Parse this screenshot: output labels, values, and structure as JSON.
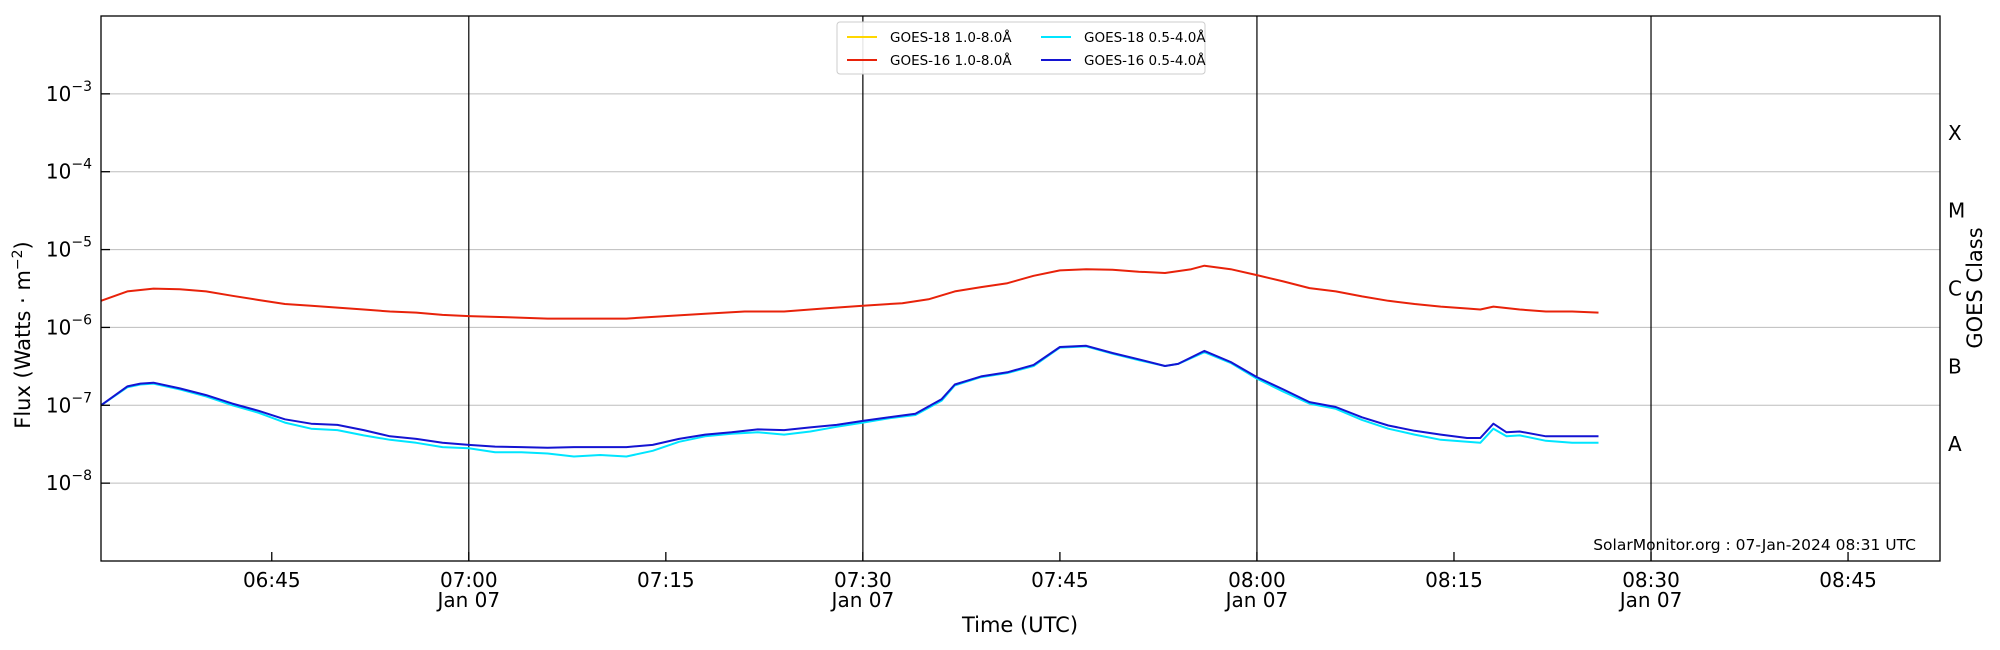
{
  "chart_data": {
    "type": "line",
    "xlabel": "Time (UTC)",
    "ylabel": "Flux (Watts · m",
    "ylabel_sup": "−2",
    "ylabel_close": ")",
    "y2label": "GOES Class",
    "yscale": "log",
    "xlim": [
      "06:32",
      "08:52"
    ],
    "ylim": [
      1e-09,
      0.01
    ],
    "grid": "horizontal",
    "legend_position": "top-center",
    "credit": "SolarMonitor.org : 07-Jan-2024 08:31 UTC",
    "y_ticks": [
      {
        "base": "10",
        "exp": "−3",
        "value": 0.001
      },
      {
        "base": "10",
        "exp": "−4",
        "value": 0.0001
      },
      {
        "base": "10",
        "exp": "−5",
        "value": 1e-05
      },
      {
        "base": "10",
        "exp": "−6",
        "value": 1e-06
      },
      {
        "base": "10",
        "exp": "−7",
        "value": 1e-07
      },
      {
        "base": "10",
        "exp": "−8",
        "value": 1e-08
      }
    ],
    "x_ticks": [
      {
        "time": "06:45",
        "label": "06:45",
        "sub": ""
      },
      {
        "time": "07:00",
        "label": "07:00",
        "sub": "Jan 07"
      },
      {
        "time": "07:15",
        "label": "07:15",
        "sub": ""
      },
      {
        "time": "07:30",
        "label": "07:30",
        "sub": "Jan 07"
      },
      {
        "time": "07:45",
        "label": "07:45",
        "sub": ""
      },
      {
        "time": "08:00",
        "label": "08:00",
        "sub": "Jan 07"
      },
      {
        "time": "08:15",
        "label": "08:15",
        "sub": ""
      },
      {
        "time": "08:30",
        "label": "08:30",
        "sub": "Jan 07"
      },
      {
        "time": "08:45",
        "label": "08:45",
        "sub": ""
      }
    ],
    "vlines": [
      "07:00",
      "07:30",
      "08:00",
      "08:30"
    ],
    "goes_classes": [
      {
        "label": "A",
        "value": 3.16e-08
      },
      {
        "label": "B",
        "value": 3.16e-07
      },
      {
        "label": "C",
        "value": 3.16e-06
      },
      {
        "label": "M",
        "value": 3.16e-05
      },
      {
        "label": "X",
        "value": 0.000316
      }
    ],
    "series": [
      {
        "name": "GOES-18 1.0-8.0Å",
        "color": "#ffd700",
        "times": [],
        "values": []
      },
      {
        "name": "GOES-16 1.0-8.0Å",
        "color": "#e8220a",
        "times": [
          "06:32",
          "06:34",
          "06:36",
          "06:38",
          "06:40",
          "06:42",
          "06:44",
          "06:46",
          "06:48",
          "06:50",
          "06:52",
          "06:54",
          "06:56",
          "06:58",
          "07:00",
          "07:03",
          "07:06",
          "07:09",
          "07:12",
          "07:15",
          "07:18",
          "07:21",
          "07:24",
          "07:27",
          "07:30",
          "07:33",
          "07:35",
          "07:37",
          "07:39",
          "07:41",
          "07:43",
          "07:45",
          "07:47",
          "07:49",
          "07:51",
          "07:53",
          "07:55",
          "07:56",
          "07:58",
          "08:00",
          "08:02",
          "08:04",
          "08:06",
          "08:08",
          "08:10",
          "08:12",
          "08:14",
          "08:16",
          "08:17",
          "08:18",
          "08:20",
          "08:22",
          "08:24",
          "08:26"
        ],
        "values": [
          2.2e-06,
          2.9e-06,
          3.15e-06,
          3.1e-06,
          2.9e-06,
          2.55e-06,
          2.25e-06,
          2e-06,
          1.9e-06,
          1.8e-06,
          1.7e-06,
          1.6e-06,
          1.55e-06,
          1.45e-06,
          1.4e-06,
          1.35e-06,
          1.3e-06,
          1.3e-06,
          1.3e-06,
          1.4e-06,
          1.5e-06,
          1.6e-06,
          1.6e-06,
          1.75e-06,
          1.9e-06,
          2.05e-06,
          2.3e-06,
          2.9e-06,
          3.3e-06,
          3.7e-06,
          4.6e-06,
          5.4e-06,
          5.6e-06,
          5.5e-06,
          5.2e-06,
          5e-06,
          5.6e-06,
          6.2e-06,
          5.6e-06,
          4.7e-06,
          3.9e-06,
          3.2e-06,
          2.9e-06,
          2.5e-06,
          2.2e-06,
          2e-06,
          1.85e-06,
          1.75e-06,
          1.7e-06,
          1.85e-06,
          1.7e-06,
          1.6e-06,
          1.6e-06,
          1.55e-06
        ]
      },
      {
        "name": "GOES-18 0.5-4.0Å",
        "color": "#00e5ff",
        "times": [
          "06:32",
          "06:34",
          "06:35",
          "06:36",
          "06:38",
          "06:40",
          "06:42",
          "06:44",
          "06:46",
          "06:48",
          "06:50",
          "06:52",
          "06:54",
          "06:56",
          "06:58",
          "07:00",
          "07:02",
          "07:04",
          "07:06",
          "07:08",
          "07:10",
          "07:12",
          "07:14",
          "07:16",
          "07:18",
          "07:20",
          "07:22",
          "07:24",
          "07:26",
          "07:28",
          "07:30",
          "07:32",
          "07:34",
          "07:36",
          "07:37",
          "07:39",
          "07:41",
          "07:43",
          "07:45",
          "07:47",
          "07:49",
          "07:51",
          "07:53",
          "07:54",
          "07:56",
          "07:58",
          "08:00",
          "08:02",
          "08:04",
          "08:06",
          "08:08",
          "08:10",
          "08:12",
          "08:14",
          "08:16",
          "08:17",
          "08:18",
          "08:19",
          "08:20",
          "08:22",
          "08:24",
          "08:26"
        ],
        "values": [
          1e-07,
          1.7e-07,
          1.85e-07,
          1.9e-07,
          1.6e-07,
          1.3e-07,
          1e-07,
          8e-08,
          6e-08,
          5e-08,
          4.8e-08,
          4.1e-08,
          3.6e-08,
          3.3e-08,
          2.9e-08,
          2.8e-08,
          2.5e-08,
          2.5e-08,
          2.4e-08,
          2.2e-08,
          2.3e-08,
          2.2e-08,
          2.6e-08,
          3.4e-08,
          4e-08,
          4.3e-08,
          4.5e-08,
          4.2e-08,
          4.6e-08,
          5.3e-08,
          6e-08,
          6.8e-08,
          7.5e-08,
          1.15e-07,
          1.8e-07,
          2.3e-07,
          2.6e-07,
          3.2e-07,
          5.5e-07,
          5.7e-07,
          4.6e-07,
          3.8e-07,
          3.2e-07,
          3.4e-07,
          4.8e-07,
          3.5e-07,
          2.2e-07,
          1.5e-07,
          1.05e-07,
          9e-08,
          6.5e-08,
          5e-08,
          4.2e-08,
          3.6e-08,
          3.4e-08,
          3.3e-08,
          5e-08,
          4e-08,
          4.1e-08,
          3.5e-08,
          3.3e-08,
          3.3e-08
        ]
      },
      {
        "name": "GOES-16 0.5-4.0Å",
        "color": "#1414d2",
        "times": [
          "06:32",
          "06:34",
          "06:35",
          "06:36",
          "06:38",
          "06:40",
          "06:42",
          "06:44",
          "06:46",
          "06:48",
          "06:50",
          "06:52",
          "06:54",
          "06:56",
          "06:58",
          "07:00",
          "07:02",
          "07:04",
          "07:06",
          "07:08",
          "07:10",
          "07:12",
          "07:14",
          "07:16",
          "07:18",
          "07:20",
          "07:22",
          "07:24",
          "07:26",
          "07:28",
          "07:30",
          "07:32",
          "07:34",
          "07:36",
          "07:37",
          "07:39",
          "07:41",
          "07:43",
          "07:45",
          "07:47",
          "07:49",
          "07:51",
          "07:53",
          "07:54",
          "07:56",
          "07:58",
          "08:00",
          "08:02",
          "08:04",
          "08:06",
          "08:08",
          "08:10",
          "08:12",
          "08:14",
          "08:16",
          "08:17",
          "08:18",
          "08:19",
          "08:20",
          "08:22",
          "08:24",
          "08:26"
        ],
        "values": [
          1e-07,
          1.75e-07,
          1.9e-07,
          1.95e-07,
          1.65e-07,
          1.35e-07,
          1.05e-07,
          8.5e-08,
          6.6e-08,
          5.8e-08,
          5.6e-08,
          4.8e-08,
          4e-08,
          3.7e-08,
          3.3e-08,
          3.1e-08,
          2.95e-08,
          2.9e-08,
          2.85e-08,
          2.9e-08,
          2.9e-08,
          2.9e-08,
          3.1e-08,
          3.7e-08,
          4.2e-08,
          4.5e-08,
          4.9e-08,
          4.8e-08,
          5.2e-08,
          5.6e-08,
          6.3e-08,
          7e-08,
          7.8e-08,
          1.2e-07,
          1.85e-07,
          2.35e-07,
          2.65e-07,
          3.3e-07,
          5.6e-07,
          5.8e-07,
          4.7e-07,
          3.9e-07,
          3.2e-07,
          3.4e-07,
          5e-07,
          3.6e-07,
          2.3e-07,
          1.6e-07,
          1.1e-07,
          9.5e-08,
          7e-08,
          5.5e-08,
          4.7e-08,
          4.2e-08,
          3.8e-08,
          3.8e-08,
          5.8e-08,
          4.5e-08,
          4.6e-08,
          4e-08,
          4e-08,
          4e-08
        ]
      }
    ]
  }
}
